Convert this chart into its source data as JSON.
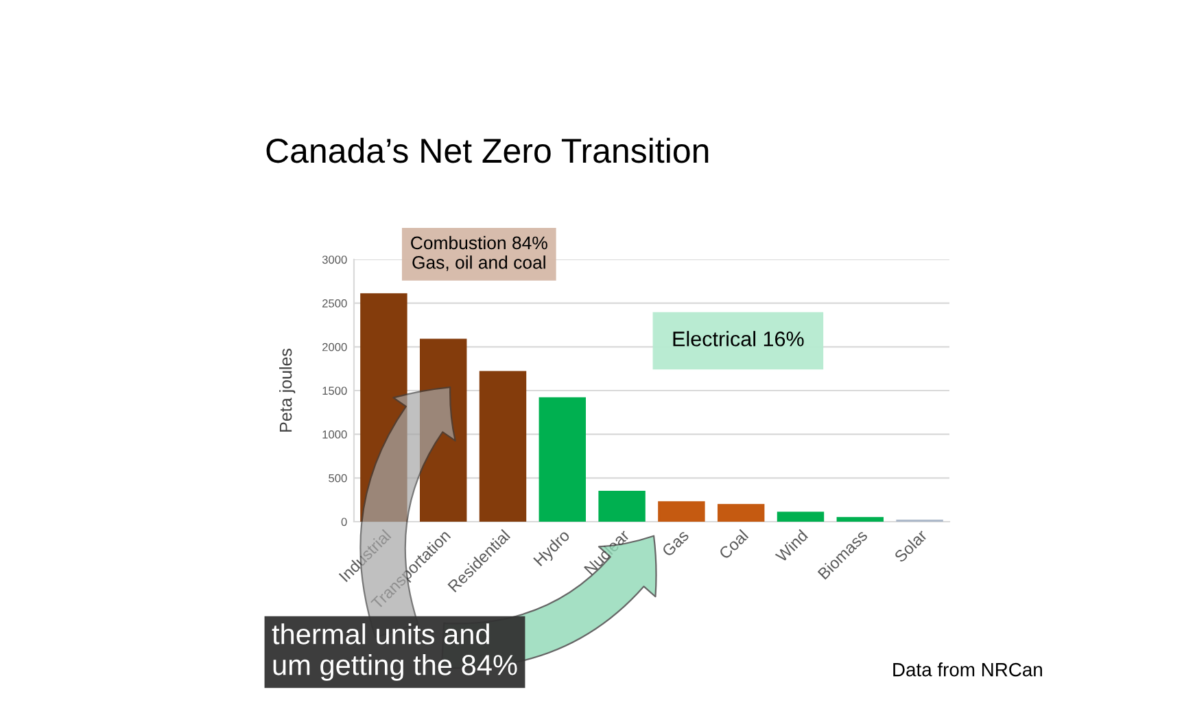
{
  "chart_data": {
    "type": "bar",
    "title": "Canada’s Net Zero Transition",
    "ylabel": "Peta joules",
    "categories": [
      "Industrial",
      "Transportation",
      "Residential",
      "Hydro",
      "Nuclear",
      "Gas",
      "Coal",
      "Wind",
      "Biomass",
      "Solar"
    ],
    "values": [
      2600,
      2080,
      1710,
      1410,
      340,
      220,
      190,
      100,
      40,
      10
    ],
    "colors": [
      "#843c0c",
      "#843c0c",
      "#843c0c",
      "#00b050",
      "#00b050",
      "#c55a11",
      "#c55a11",
      "#00b050",
      "#00b050",
      "#adb9ca"
    ],
    "ylim": [
      0,
      3000
    ],
    "yticks": [
      0,
      500,
      1000,
      1500,
      2000,
      2500,
      3000
    ],
    "grid": "y",
    "annotations": [
      "Combustion 84%\nGas, oil and coal",
      "Electrical 16%",
      "thermal units and\num getting the 84%",
      "Data from NRCan"
    ]
  }
}
